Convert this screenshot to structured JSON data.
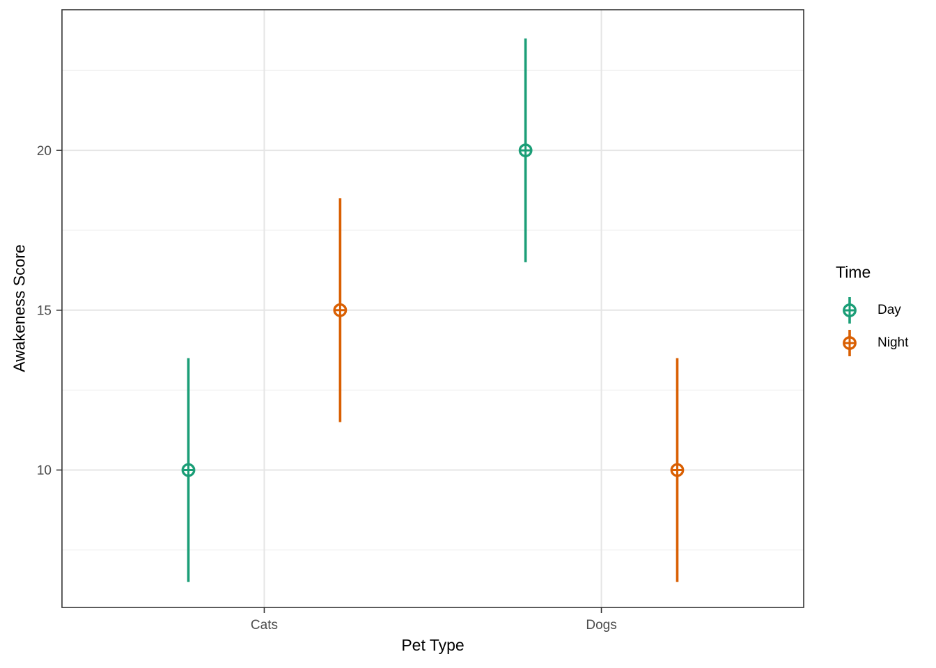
{
  "chart_data": {
    "type": "pointrange",
    "title": "",
    "xlabel": "Pet Type",
    "ylabel": "Awakeness Score",
    "x_categories": [
      {
        "label": "Cats",
        "position": 1
      },
      {
        "label": "Dogs",
        "position": 2
      }
    ],
    "series": [
      {
        "name": "Day",
        "color": "#1B9E77",
        "points": [
          {
            "category": "Cats",
            "y": 10,
            "ymin": 6.5,
            "ymax": 13.5
          },
          {
            "category": "Dogs",
            "y": 20,
            "ymin": 16.5,
            "ymax": 23.5
          }
        ]
      },
      {
        "name": "Night",
        "color": "#D95F02",
        "points": [
          {
            "category": "Cats",
            "y": 15,
            "ymin": 11.5,
            "ymax": 18.5
          },
          {
            "category": "Dogs",
            "y": 10,
            "ymin": 6.5,
            "ymax": 13.5
          }
        ]
      }
    ],
    "y_major_ticks": [
      {
        "value": 10,
        "label": "10"
      },
      {
        "value": 15,
        "label": "15"
      },
      {
        "value": 20,
        "label": "20"
      }
    ],
    "y_minor_ticks": [
      7.5,
      12.5,
      17.5,
      22.5
    ],
    "ylim": [
      5.7,
      24.4
    ],
    "xlim": [
      0.4,
      2.6
    ],
    "dodge_offset": 0.225,
    "marker": "circle-plus",
    "grid": {
      "horizontal": "major+minor",
      "vertical": "major-only"
    },
    "legend": {
      "title": "Time",
      "position": "right"
    }
  },
  "style": {
    "background": "#FFFFFF",
    "panel_border_color": "#333333",
    "grid_major_color": "#E5E5E5",
    "grid_minor_color": "#F1F1F1",
    "axis_tick_color": "#333333",
    "tick_label_color": "#4D4D4D",
    "title_color": "#000000",
    "marker_fill": "#FFFFFF"
  }
}
